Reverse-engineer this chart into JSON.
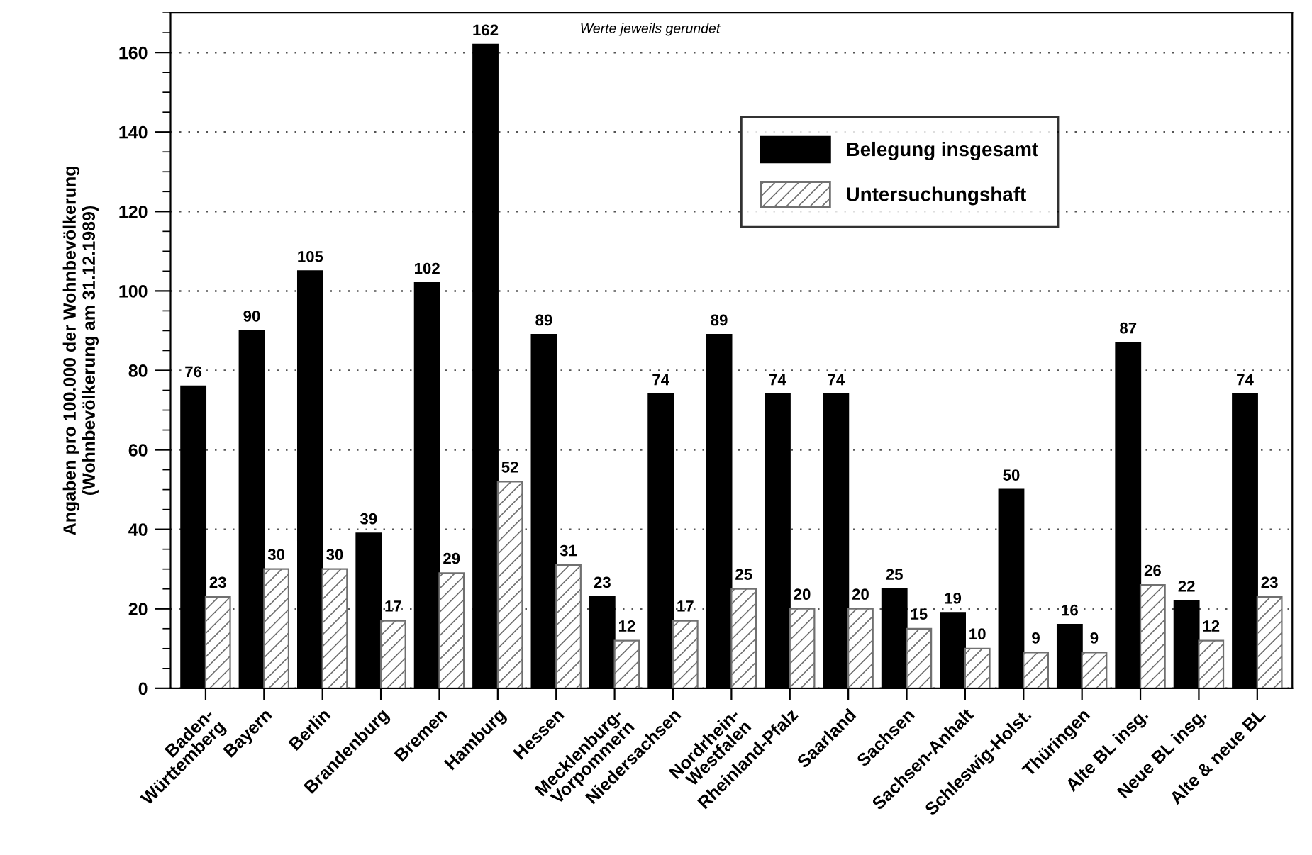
{
  "chart_data": {
    "type": "bar",
    "ylabel": "Angaben pro 100.000 der Wohnbevölkerung\n(Wohnbevölkerung am 31.12.1989)",
    "annotations": [
      "Werte jeweils gerundet"
    ],
    "categories": [
      "Baden-\nWürttemberg",
      "Bayern",
      "Berlin",
      "Brandenburg",
      "Bremen",
      "Hamburg",
      "Hessen",
      "Mecklenburg-\nVorpommern",
      "Niedersachsen",
      "Nordrhein-\nWestfalen",
      "Rheinland-Pfalz",
      "Saarland",
      "Sachsen",
      "Sachsen-Anhalt",
      "Schleswig-Holst.",
      "Thüringen",
      "Alte BL insg.",
      "Neue BL insg.",
      "Alte & neue BL"
    ],
    "series": [
      {
        "name": "Belegung insgesamt",
        "color": "#000000",
        "values": [
          76,
          90,
          105,
          39,
          102,
          162,
          89,
          23,
          74,
          89,
          74,
          74,
          25,
          19,
          50,
          16,
          87,
          22,
          74
        ]
      },
      {
        "name": "Untersuchungshaft",
        "color": "#707070",
        "values": [
          23,
          30,
          30,
          17,
          29,
          52,
          31,
          12,
          17,
          25,
          20,
          20,
          15,
          10,
          9,
          9,
          26,
          12,
          23
        ]
      }
    ],
    "ylim": [
      0,
      170
    ],
    "yticks": [
      0,
      20,
      40,
      60,
      80,
      100,
      120,
      140,
      160
    ],
    "grid": "y",
    "legend": "top right",
    "data_labels": true
  }
}
